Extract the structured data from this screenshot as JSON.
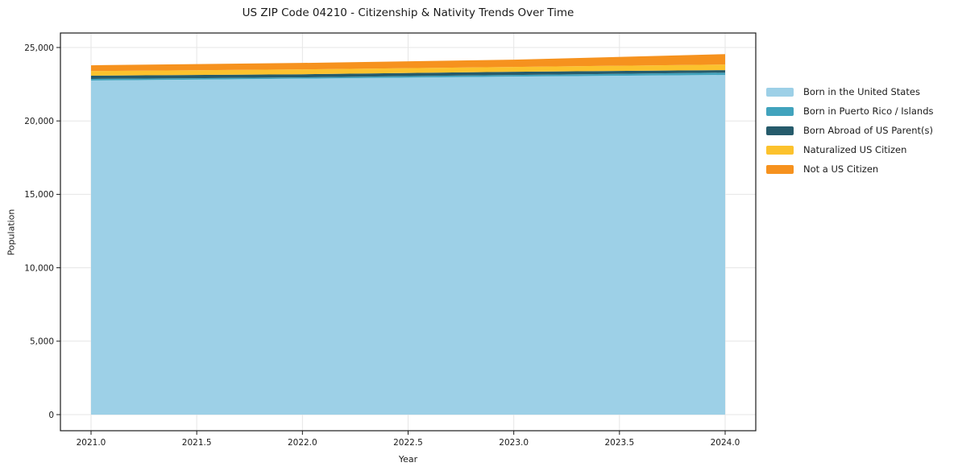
{
  "chart_data": {
    "type": "area",
    "stacked": true,
    "title": "US ZIP Code 04210 - Citizenship & Nativity Trends Over Time",
    "xlabel": "Year",
    "ylabel": "Population",
    "x": [
      2021,
      2022,
      2023,
      2024
    ],
    "series": [
      {
        "name": "Born in the United States",
        "color": "#9dd0e7",
        "values": [
          22750,
          22880,
          23020,
          23130
        ]
      },
      {
        "name": "Born in Puerto Rico / Islands",
        "color": "#41a3bd",
        "values": [
          110,
          90,
          110,
          160
        ]
      },
      {
        "name": "Born Abroad of US Parent(s)",
        "color": "#265b6b",
        "values": [
          220,
          210,
          220,
          170
        ]
      },
      {
        "name": "Naturalized US Citizen",
        "color": "#fcc22d",
        "values": [
          320,
          330,
          330,
          380
        ]
      },
      {
        "name": "Not a US Citizen",
        "color": "#f6921e",
        "values": [
          390,
          440,
          490,
          710
        ]
      }
    ],
    "totals": [
      23790,
      23950,
      24170,
      24550
    ],
    "xticks": {
      "values": [
        2021.0,
        2021.5,
        2022.0,
        2022.5,
        2023.0,
        2023.5,
        2024.0
      ],
      "labels": [
        "2021.0",
        "2021.5",
        "2022.0",
        "2022.5",
        "2023.0",
        "2023.5",
        "2024.0"
      ]
    },
    "yticks": {
      "values": [
        0,
        5000,
        10000,
        15000,
        20000,
        25000
      ],
      "labels": [
        "0",
        "5,000",
        "10,000",
        "15,000",
        "20,000",
        "25,000"
      ]
    },
    "xlim": [
      2020.85,
      2024.15
    ],
    "ylim": [
      -1100,
      26000
    ],
    "grid": true,
    "grid_color": "#e6e6e6",
    "spine_color": "#1a1a1a",
    "legend_position": "outside-right"
  }
}
